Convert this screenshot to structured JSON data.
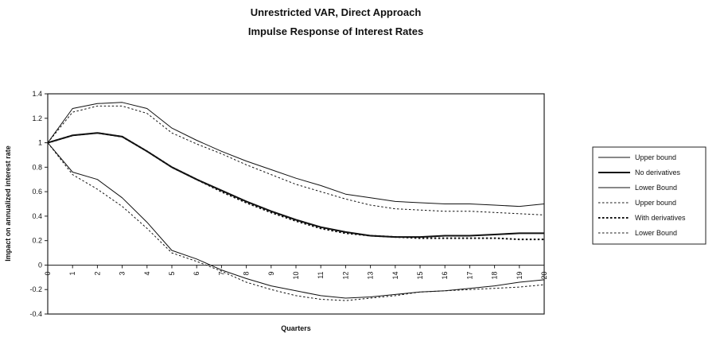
{
  "chart_data": {
    "type": "line",
    "title": "Unrestricted VAR, Direct Approach",
    "subtitle": "Impulse Response of Interest Rates",
    "xlabel": "Quarters",
    "ylabel": "Impact on annualized interest rate",
    "xlim": [
      0,
      20
    ],
    "ylim": [
      -0.4,
      1.4
    ],
    "x_ticks": [
      "0",
      "1",
      "2",
      "3",
      "4",
      "5",
      "6",
      "7",
      "8",
      "9",
      "10",
      "11",
      "12",
      "13",
      "14",
      "15",
      "16",
      "17",
      "18",
      "19",
      "20"
    ],
    "y_ticks": [
      "1.4",
      "1.2",
      "1",
      "0.8",
      "0.6",
      "0.4",
      "0.2",
      "0",
      "-0.2",
      "-0.4"
    ],
    "grid": false,
    "legend_position": "right",
    "x": [
      0,
      1,
      2,
      3,
      4,
      5,
      6,
      7,
      8,
      9,
      10,
      11,
      12,
      13,
      14,
      15,
      16,
      17,
      18,
      19,
      20
    ],
    "series": [
      {
        "name": "Upper bound",
        "style": "solid",
        "width": 1,
        "values": [
          1.0,
          1.28,
          1.32,
          1.33,
          1.28,
          1.12,
          1.02,
          0.93,
          0.85,
          0.78,
          0.71,
          0.65,
          0.58,
          0.55,
          0.52,
          0.51,
          0.5,
          0.5,
          0.49,
          0.48,
          0.5
        ]
      },
      {
        "name": "No derivatives",
        "style": "solid",
        "width": 2,
        "values": [
          1.0,
          1.06,
          1.08,
          1.05,
          0.93,
          0.8,
          0.7,
          0.61,
          0.52,
          0.44,
          0.37,
          0.31,
          0.27,
          0.24,
          0.23,
          0.23,
          0.24,
          0.24,
          0.25,
          0.26,
          0.26
        ]
      },
      {
        "name": "Lower Bound",
        "style": "solid",
        "width": 1,
        "values": [
          1.0,
          0.76,
          0.7,
          0.55,
          0.35,
          0.12,
          0.05,
          -0.04,
          -0.11,
          -0.17,
          -0.21,
          -0.25,
          -0.27,
          -0.26,
          -0.24,
          -0.22,
          -0.21,
          -0.19,
          -0.17,
          -0.14,
          -0.12
        ]
      },
      {
        "name": "Upper bound",
        "style": "dotted",
        "width": 1,
        "values": [
          1.0,
          1.25,
          1.3,
          1.3,
          1.24,
          1.08,
          0.99,
          0.91,
          0.82,
          0.74,
          0.66,
          0.6,
          0.54,
          0.49,
          0.46,
          0.45,
          0.44,
          0.44,
          0.43,
          0.42,
          0.41
        ]
      },
      {
        "name": "With derivatives",
        "style": "dotted",
        "width": 2,
        "values": [
          1.0,
          1.06,
          1.08,
          1.05,
          0.93,
          0.8,
          0.7,
          0.6,
          0.51,
          0.43,
          0.36,
          0.3,
          0.26,
          0.24,
          0.23,
          0.22,
          0.22,
          0.22,
          0.22,
          0.21,
          0.21
        ]
      },
      {
        "name": "Lower Bound",
        "style": "dotted",
        "width": 1,
        "values": [
          1.0,
          0.74,
          0.62,
          0.48,
          0.3,
          0.1,
          0.03,
          -0.05,
          -0.14,
          -0.2,
          -0.25,
          -0.28,
          -0.29,
          -0.27,
          -0.25,
          -0.22,
          -0.21,
          -0.2,
          -0.19,
          -0.18,
          -0.16
        ]
      }
    ]
  }
}
